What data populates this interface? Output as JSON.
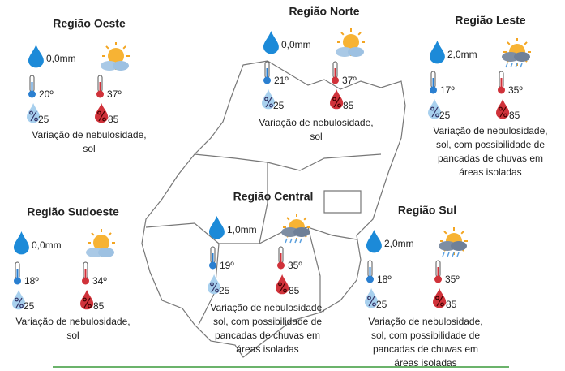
{
  "regions": [
    {
      "name": "Região Oeste",
      "rain": "0,0mm",
      "temp_min": "20º",
      "temp_max": "37º",
      "humidity_min": "25",
      "humidity_max": "85",
      "description": [
        "Variação de nebulosidade,",
        "sol"
      ]
    },
    {
      "name": "Região Norte",
      "rain": "0,0mm",
      "temp_min": "21º",
      "temp_max": "37º",
      "humidity_min": "25",
      "humidity_max": "85",
      "description": [
        "Variação de nebulosidade,",
        "sol"
      ]
    },
    {
      "name": "Região Leste",
      "rain": "2,0mm",
      "temp_min": "17º",
      "temp_max": "35º",
      "humidity_min": "25",
      "humidity_max": "85",
      "description": [
        "Variação de nebulosidade,",
        "sol, com possibilidade de",
        "pancadas de chuvas em",
        "áreas isoladas"
      ]
    },
    {
      "name": "Região Sudoeste",
      "rain": "0,0mm",
      "temp_min": "18º",
      "temp_max": "34º",
      "humidity_min": "25",
      "humidity_max": "85",
      "description": [
        "Variação de nebulosidade,",
        "sol"
      ]
    },
    {
      "name": "Região Central",
      "rain": "1,0mm",
      "temp_min": "19º",
      "temp_max": "35º",
      "humidity_min": "25",
      "humidity_max": "85",
      "description": [
        "Variação de nebulosidade,",
        "sol, com possibilidade de",
        "pancadas de chuvas em",
        "áreas isoladas"
      ]
    },
    {
      "name": "Região Sul",
      "rain": "2,0mm",
      "temp_min": "18º",
      "temp_max": "35º",
      "humidity_min": "25",
      "humidity_max": "85",
      "description": [
        "Variação de nebulosidade,",
        "sol, com possibilidade de",
        "pancadas de chuvas em",
        "áreas isoladas"
      ]
    }
  ]
}
